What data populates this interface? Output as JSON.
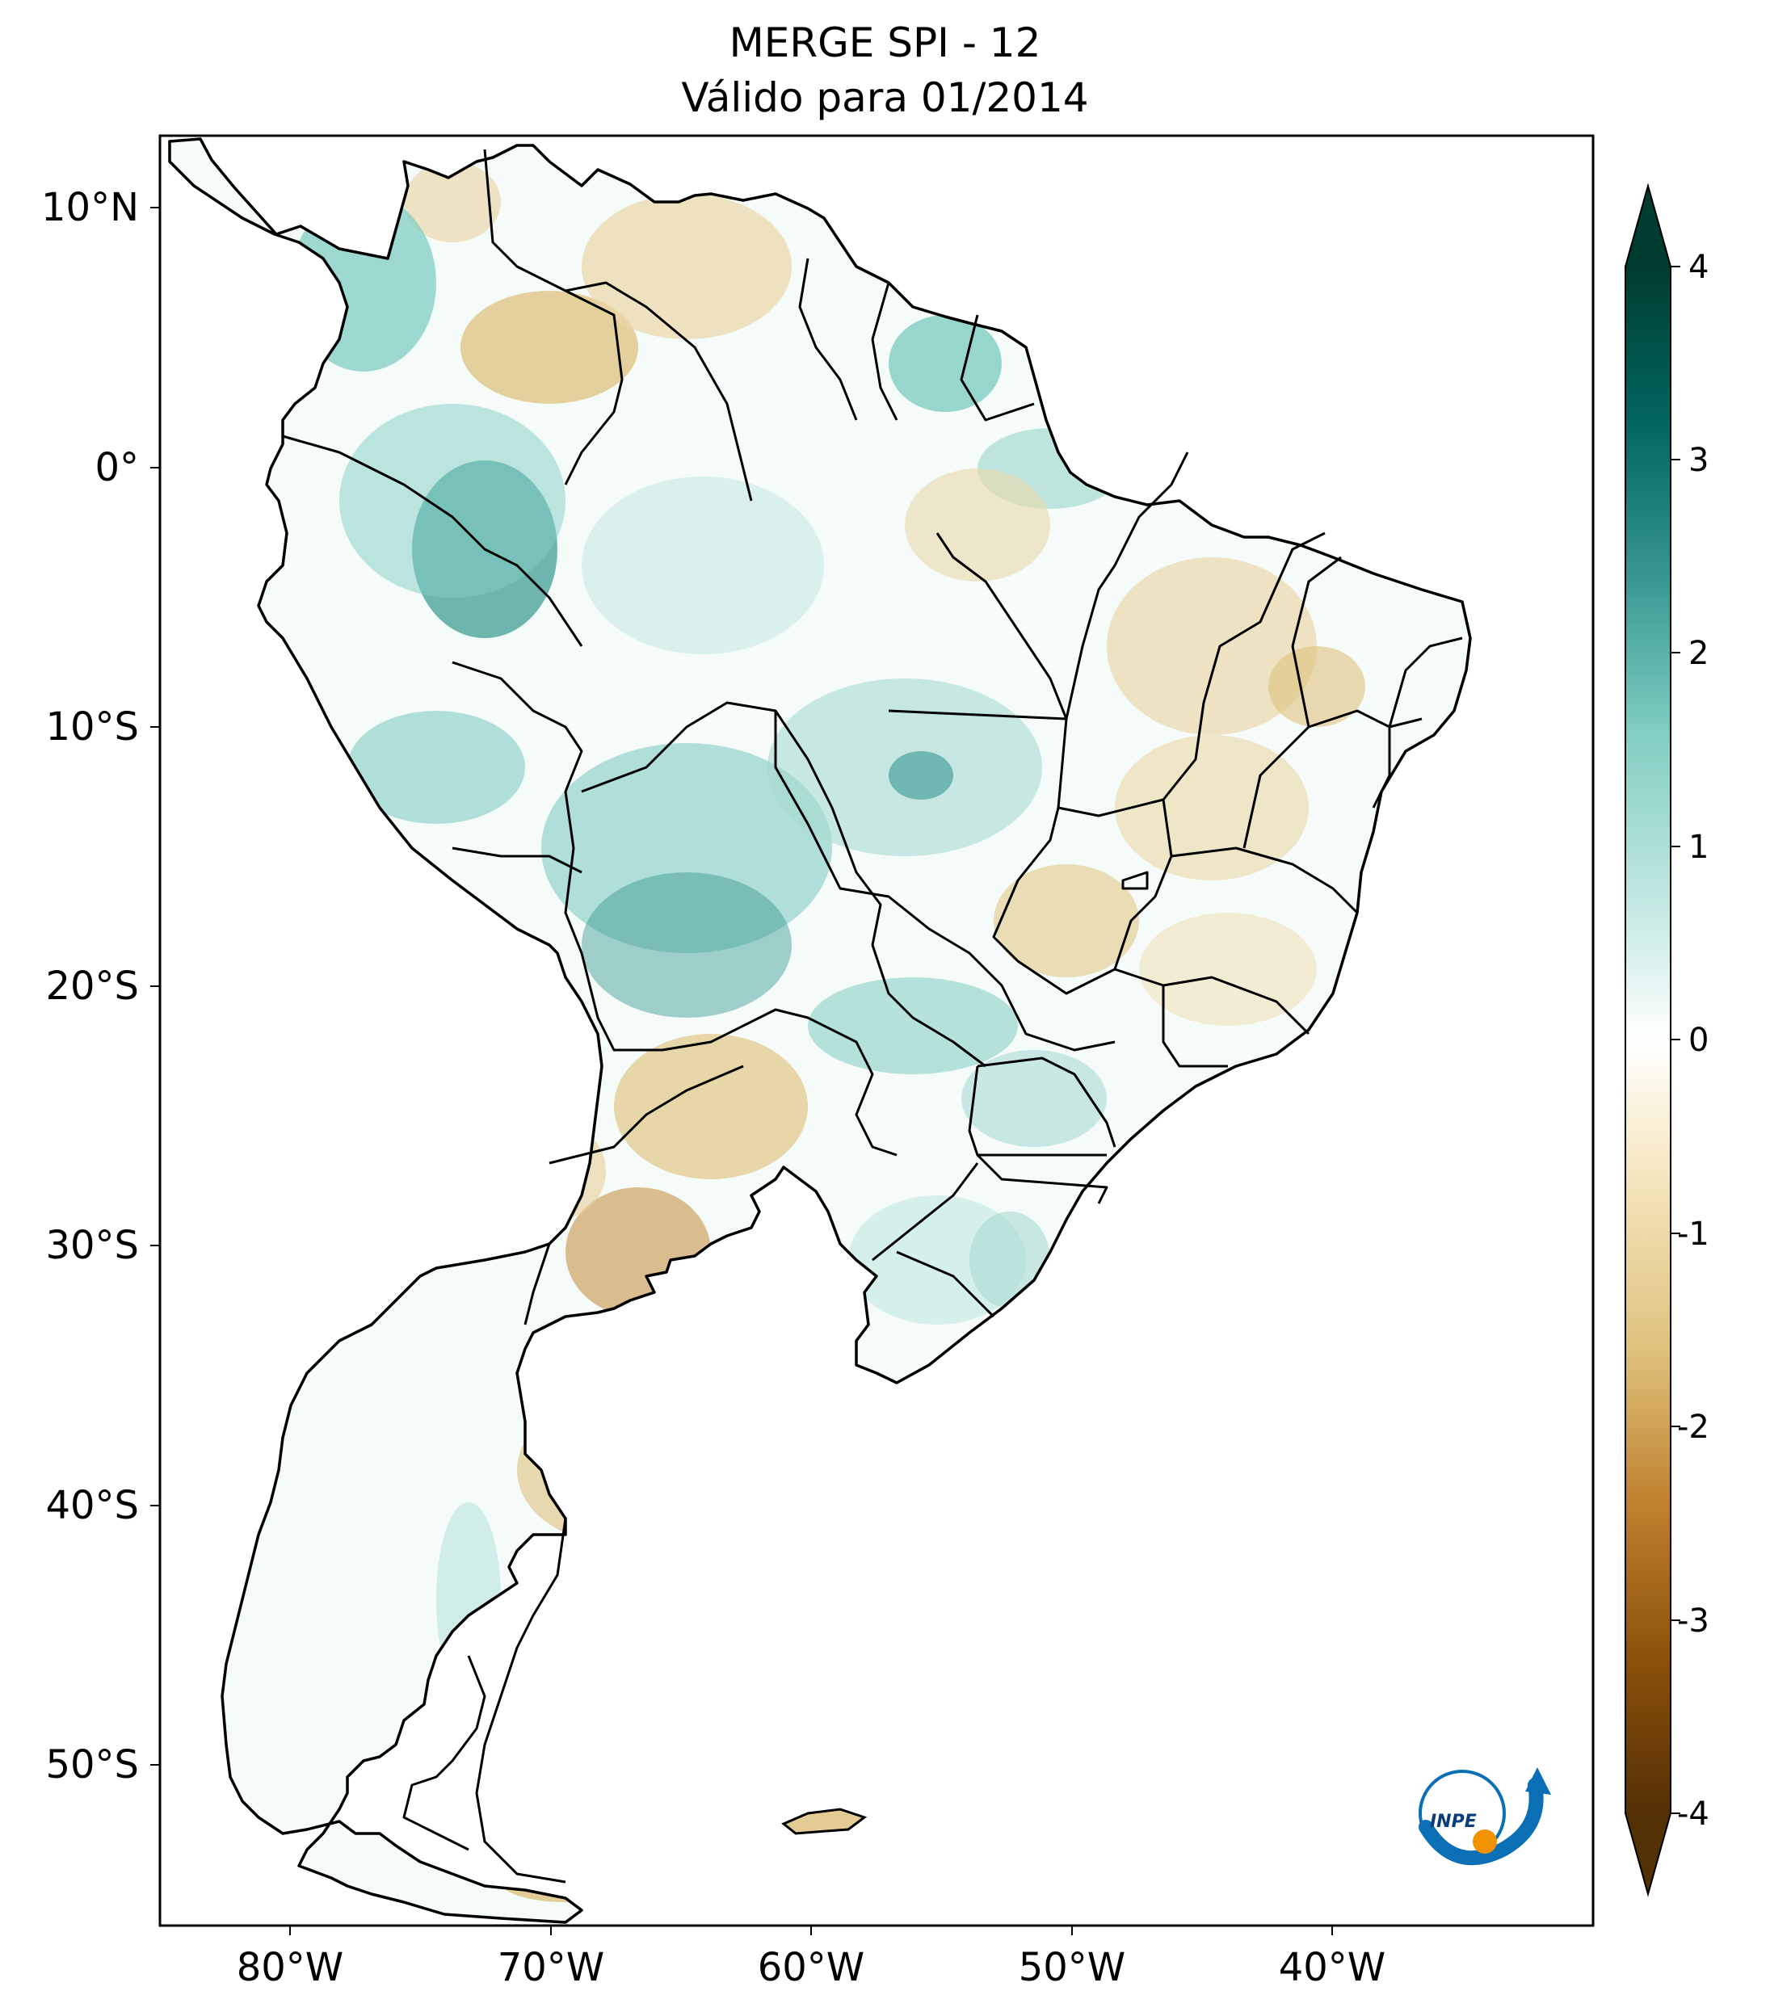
{
  "title": {
    "line1": "MERGE   SPI - 12",
    "line2": "Válido para 01/2014"
  },
  "map": {
    "lat_ticks": [
      "10°N",
      "0°",
      "10°S",
      "20°S",
      "30°S",
      "40°S",
      "50°S"
    ],
    "lon_ticks": [
      "80°W",
      "70°W",
      "60°W",
      "50°W",
      "40°W"
    ],
    "extent_lon": [
      -85,
      -30
    ],
    "extent_lat": [
      -56,
      13
    ]
  },
  "colorbar": {
    "labels": [
      "4",
      "3",
      "2",
      "1",
      "0",
      "-1",
      "-2",
      "-3",
      "-4"
    ],
    "min": -4,
    "max": 4,
    "extend": "both",
    "colormap": "BrBG",
    "colors": [
      "#543005",
      "#8c510a",
      "#bf812d",
      "#dfc27d",
      "#f6e8c3",
      "#ffffff",
      "#c7eae5",
      "#80cdc1",
      "#35978f",
      "#01665e",
      "#003c30"
    ]
  },
  "logo": {
    "text": "INPE",
    "colors": [
      "#0a6fb5",
      "#f39200"
    ]
  }
}
